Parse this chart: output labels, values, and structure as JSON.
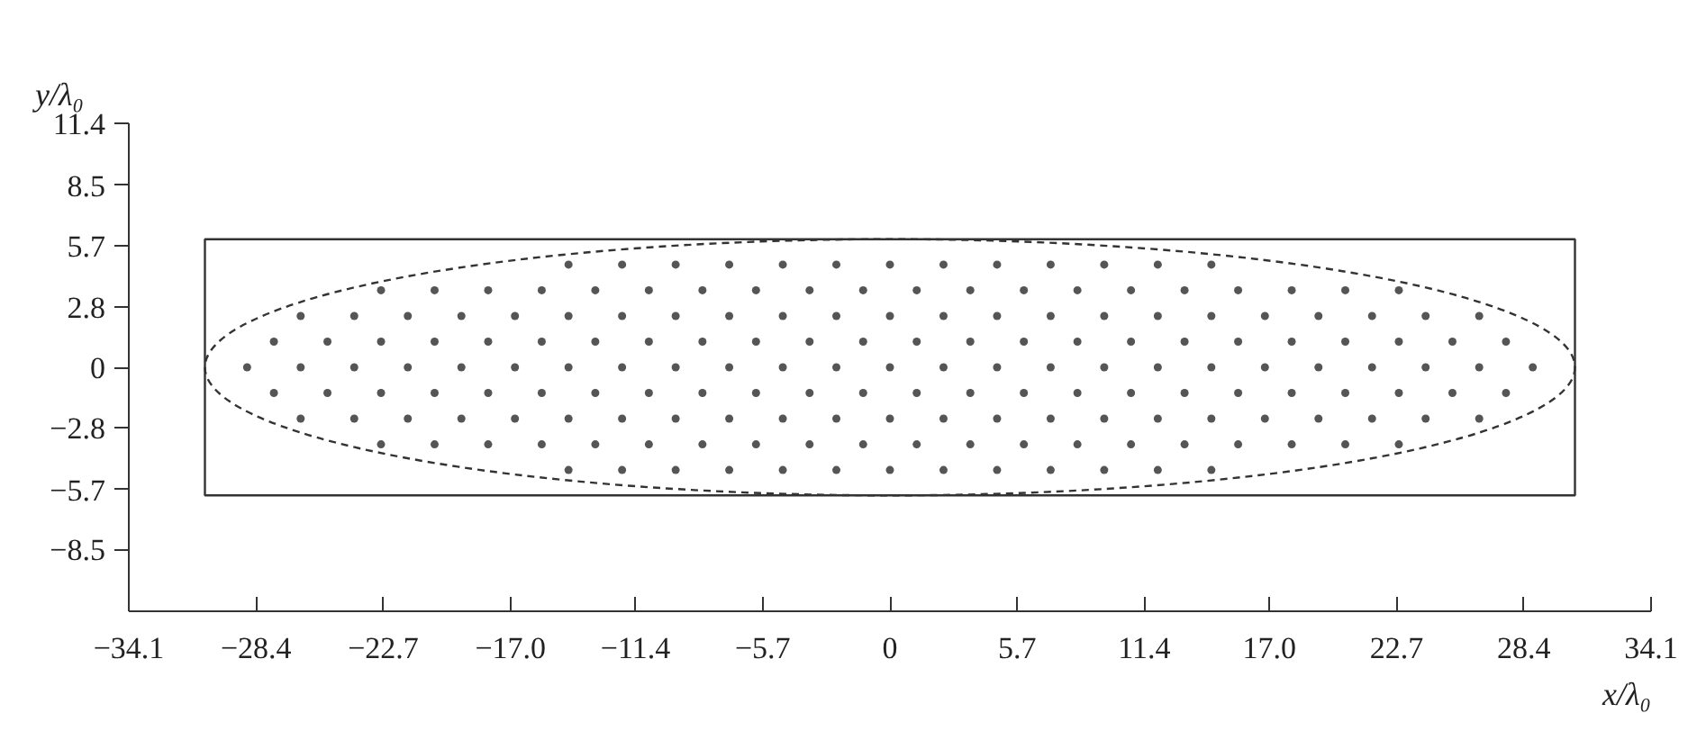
{
  "chart_data": {
    "type": "scatter",
    "xlabel": "x/λ₀",
    "ylabel": "y/λ₀",
    "marker": "circle",
    "xlim": [
      -34.1,
      34.1
    ],
    "ylim": [
      -11.4,
      11.4
    ],
    "xticks": [
      {
        "value": -34.1,
        "label": "−34.1"
      },
      {
        "value": -28.4,
        "label": "−28.4"
      },
      {
        "value": -22.7,
        "label": "−22.7"
      },
      {
        "value": -17.0,
        "label": "−17.0"
      },
      {
        "value": -11.4,
        "label": "−11.4"
      },
      {
        "value": -5.7,
        "label": "−5.7"
      },
      0,
      5.7,
      11.4,
      {
        "value": 17.0,
        "label": "17.0"
      },
      22.7,
      28.4,
      34.1
    ],
    "yticks": [
      {
        "value": -8.5,
        "label": "−8.5"
      },
      {
        "value": -5.7,
        "label": "−5.7"
      },
      {
        "value": -2.8,
        "label": "−2.8"
      },
      0,
      2.8,
      5.7,
      8.5,
      11.4
    ],
    "series": [
      {
        "color": "#555555",
        "x": [
          -28.8,
          -26.4,
          -24,
          -21.6,
          -19.2,
          -16.8,
          -14.4,
          -12,
          -9.6,
          -7.2,
          -4.8,
          -2.4,
          0,
          2.4,
          4.8,
          7.2,
          9.6,
          12,
          14.4,
          16.8,
          19.2,
          21.6,
          24,
          26.4,
          28.8
        ],
        "values": [
          0,
          0,
          0,
          0,
          0,
          0,
          0,
          0,
          0,
          0,
          0,
          0,
          0,
          0,
          0,
          0,
          0,
          0,
          0,
          0,
          0,
          0,
          0,
          0,
          0
        ]
      },
      {
        "color": "#555555",
        "x": [
          -27.6,
          -25.2,
          -22.8,
          -20.4,
          -18,
          -15.6,
          -13.2,
          -10.8,
          -8.4,
          -6,
          -3.6,
          -1.2,
          1.2,
          3.6,
          6,
          8.4,
          10.8,
          13.2,
          15.6,
          18,
          20.4,
          22.8,
          25.2,
          27.6
        ],
        "values": [
          1.2,
          1.2,
          1.2,
          1.2,
          1.2,
          1.2,
          1.2,
          1.2,
          1.2,
          1.2,
          1.2,
          1.2,
          1.2,
          1.2,
          1.2,
          1.2,
          1.2,
          1.2,
          1.2,
          1.2,
          1.2,
          1.2,
          1.2,
          1.2
        ]
      },
      {
        "color": "#555555",
        "x": [
          -27.6,
          -25.2,
          -22.8,
          -20.4,
          -18,
          -15.6,
          -13.2,
          -10.8,
          -8.4,
          -6,
          -3.6,
          -1.2,
          1.2,
          3.6,
          6,
          8.4,
          10.8,
          13.2,
          15.6,
          18,
          20.4,
          22.8,
          25.2,
          27.6
        ],
        "values": [
          -1.2,
          -1.2,
          -1.2,
          -1.2,
          -1.2,
          -1.2,
          -1.2,
          -1.2,
          -1.2,
          -1.2,
          -1.2,
          -1.2,
          -1.2,
          -1.2,
          -1.2,
          -1.2,
          -1.2,
          -1.2,
          -1.2,
          -1.2,
          -1.2,
          -1.2,
          -1.2,
          -1.2
        ]
      },
      {
        "color": "#555555",
        "x": [
          -26.4,
          -24,
          -21.6,
          -19.2,
          -16.8,
          -14.4,
          -12,
          -9.6,
          -7.2,
          -4.8,
          -2.4,
          0,
          2.4,
          4.8,
          7.2,
          9.6,
          12,
          14.4,
          16.8,
          19.2,
          21.6,
          24,
          26.4
        ],
        "values": [
          2.4,
          2.4,
          2.4,
          2.4,
          2.4,
          2.4,
          2.4,
          2.4,
          2.4,
          2.4,
          2.4,
          2.4,
          2.4,
          2.4,
          2.4,
          2.4,
          2.4,
          2.4,
          2.4,
          2.4,
          2.4,
          2.4,
          2.4
        ]
      },
      {
        "color": "#555555",
        "x": [
          -26.4,
          -24,
          -21.6,
          -19.2,
          -16.8,
          -14.4,
          -12,
          -9.6,
          -7.2,
          -4.8,
          -2.4,
          0,
          2.4,
          4.8,
          7.2,
          9.6,
          12,
          14.4,
          16.8,
          19.2,
          21.6,
          24,
          26.4
        ],
        "values": [
          -2.4,
          -2.4,
          -2.4,
          -2.4,
          -2.4,
          -2.4,
          -2.4,
          -2.4,
          -2.4,
          -2.4,
          -2.4,
          -2.4,
          -2.4,
          -2.4,
          -2.4,
          -2.4,
          -2.4,
          -2.4,
          -2.4,
          -2.4,
          -2.4,
          -2.4,
          -2.4
        ]
      },
      {
        "color": "#555555",
        "x": [
          -22.8,
          -20.4,
          -18,
          -15.6,
          -13.2,
          -10.8,
          -8.4,
          -6,
          -3.6,
          -1.2,
          1.2,
          3.6,
          6,
          8.4,
          10.8,
          13.2,
          15.6,
          18,
          20.4,
          22.8
        ],
        "values": [
          3.6,
          3.6,
          3.6,
          3.6,
          3.6,
          3.6,
          3.6,
          3.6,
          3.6,
          3.6,
          3.6,
          3.6,
          3.6,
          3.6,
          3.6,
          3.6,
          3.6,
          3.6,
          3.6,
          3.6
        ]
      },
      {
        "color": "#555555",
        "x": [
          -22.8,
          -20.4,
          -18,
          -15.6,
          -13.2,
          -10.8,
          -8.4,
          -6,
          -3.6,
          -1.2,
          1.2,
          3.6,
          6,
          8.4,
          10.8,
          13.2,
          15.6,
          18,
          20.4,
          22.8
        ],
        "values": [
          -3.6,
          -3.6,
          -3.6,
          -3.6,
          -3.6,
          -3.6,
          -3.6,
          -3.6,
          -3.6,
          -3.6,
          -3.6,
          -3.6,
          -3.6,
          -3.6,
          -3.6,
          -3.6,
          -3.6,
          -3.6,
          -3.6,
          -3.6
        ]
      },
      {
        "color": "#555555",
        "x": [
          -14.4,
          -12,
          -9.6,
          -7.2,
          -4.8,
          -2.4,
          0,
          2.4,
          4.8,
          7.2,
          9.6,
          12,
          14.4
        ],
        "values": [
          4.8,
          4.8,
          4.8,
          4.8,
          4.8,
          4.8,
          4.8,
          4.8,
          4.8,
          4.8,
          4.8,
          4.8,
          4.8
        ]
      },
      {
        "color": "#555555",
        "x": [
          -14.4,
          -12,
          -9.6,
          -7.2,
          -4.8,
          -2.4,
          0,
          2.4,
          4.8,
          7.2,
          9.6,
          12,
          14.4
        ],
        "values": [
          -4.8,
          -4.8,
          -4.8,
          -4.8,
          -4.8,
          -4.8,
          -4.8,
          -4.8,
          -4.8,
          -4.8,
          -4.8,
          -4.8,
          -4.8
        ]
      }
    ]
  }
}
